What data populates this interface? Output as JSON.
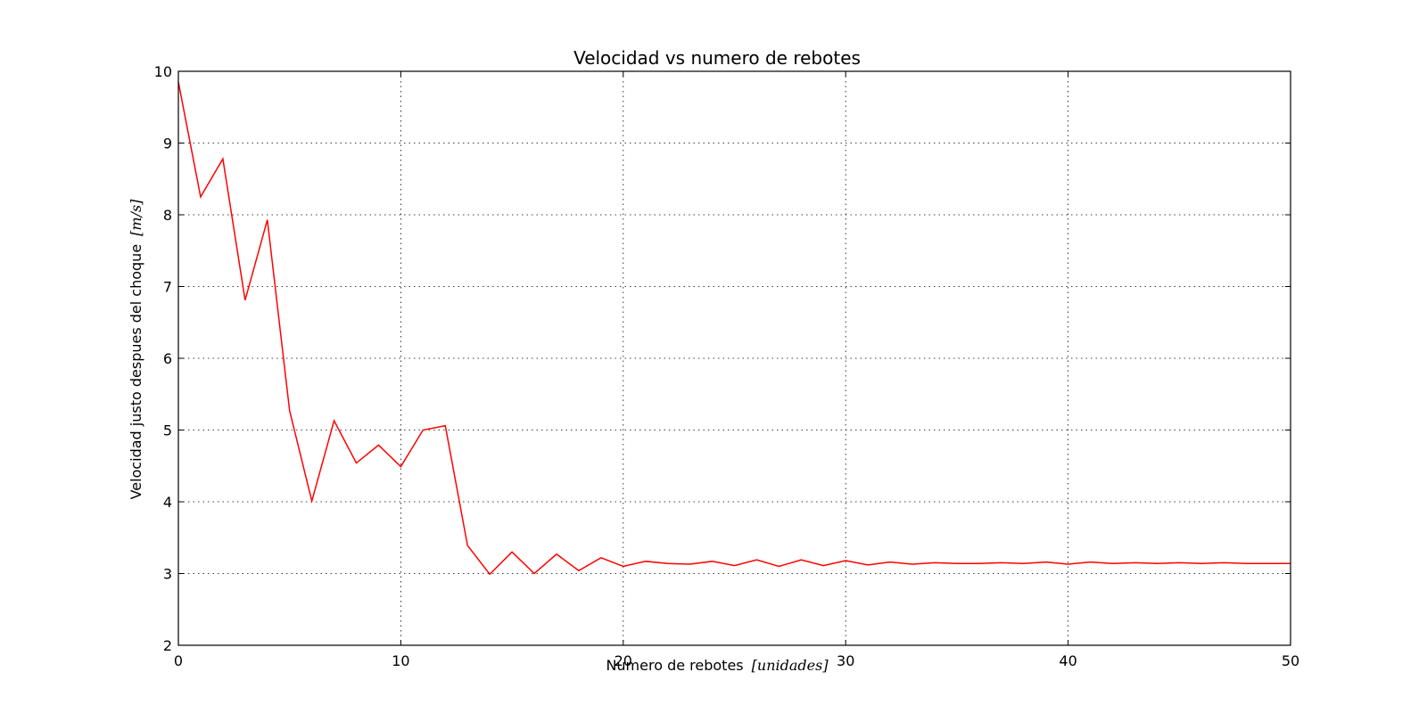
{
  "chart_data": {
    "type": "line",
    "title": "Velocidad vs numero de rebotes",
    "xlabel": "Numero de rebotes",
    "xlabel_unit": "[unidades]",
    "ylabel": "Velocidad justo despues del choque",
    "ylabel_unit": "[m/s]",
    "xlim": [
      0,
      50
    ],
    "ylim": [
      2,
      10
    ],
    "xticks": [
      0,
      10,
      20,
      30,
      40,
      50
    ],
    "yticks": [
      2,
      3,
      4,
      5,
      6,
      7,
      8,
      9,
      10
    ],
    "grid": true,
    "series": [
      {
        "color": "#ff0000",
        "x": [
          0,
          1,
          2,
          3,
          4,
          5,
          6,
          7,
          8,
          9,
          10,
          11,
          12,
          13,
          14,
          15,
          16,
          17,
          18,
          19,
          20,
          21,
          22,
          23,
          24,
          25,
          26,
          27,
          28,
          29,
          30,
          31,
          32,
          33,
          34,
          35,
          36,
          37,
          38,
          39,
          40,
          41,
          42,
          43,
          44,
          45,
          46,
          47,
          48,
          49,
          50
        ],
        "y": [
          9.85,
          8.25,
          8.78,
          6.81,
          7.93,
          5.27,
          4.01,
          5.13,
          4.54,
          4.79,
          4.49,
          5.0,
          5.06,
          3.39,
          2.99,
          3.3,
          3.0,
          3.27,
          3.04,
          3.22,
          3.1,
          3.17,
          3.14,
          3.13,
          3.17,
          3.11,
          3.19,
          3.1,
          3.19,
          3.11,
          3.18,
          3.12,
          3.16,
          3.13,
          3.15,
          3.14,
          3.14,
          3.15,
          3.14,
          3.16,
          3.13,
          3.16,
          3.14,
          3.15,
          3.14,
          3.15,
          3.14,
          3.15,
          3.14,
          3.14,
          3.14
        ]
      }
    ]
  }
}
